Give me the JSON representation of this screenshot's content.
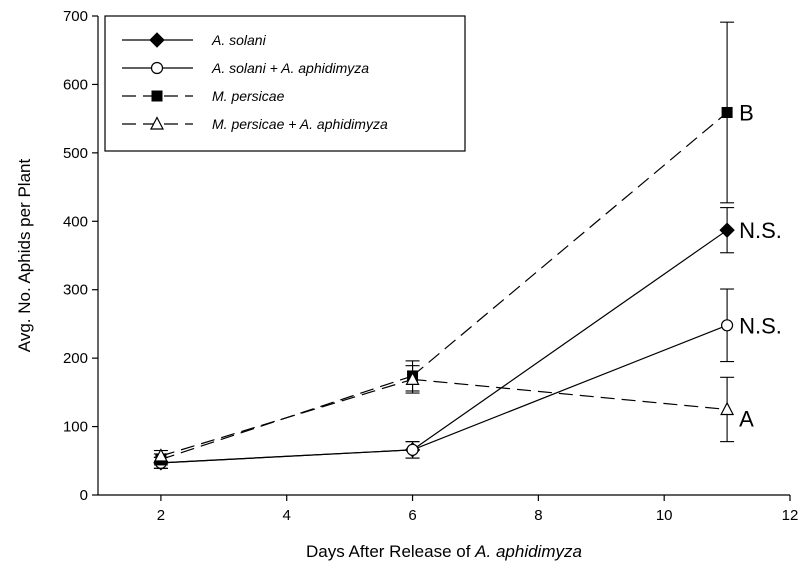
{
  "chart_data": {
    "type": "line",
    "xlabel": "Days After Release of A. aphidimyza",
    "xlabel_parts": [
      "Days After Release of ",
      "A. aphidimyza"
    ],
    "ylabel": "Avg. No. Aphids per Plant",
    "xlim": [
      1,
      12
    ],
    "ylim": [
      0,
      700
    ],
    "xticks": [
      2,
      4,
      6,
      8,
      10,
      12
    ],
    "yticks": [
      0,
      100,
      200,
      300,
      400,
      500,
      600,
      700
    ],
    "grid": false,
    "legend_position": "top-left",
    "series": [
      {
        "name": "A. solani",
        "marker": "filled-diamond",
        "line": "solid",
        "points": [
          {
            "x": 2,
            "y": 47,
            "err": 8
          },
          {
            "x": 6,
            "y": 66,
            "err": 12
          },
          {
            "x": 11,
            "y": 387,
            "err": 33
          }
        ]
      },
      {
        "name": "A. solani + A. aphidimyza",
        "marker": "open-circle",
        "line": "solid",
        "points": [
          {
            "x": 2,
            "y": 47,
            "err": 8
          },
          {
            "x": 6,
            "y": 66,
            "err": 12
          },
          {
            "x": 11,
            "y": 248,
            "err": 53
          }
        ]
      },
      {
        "name": "M. persicae",
        "marker": "filled-square",
        "line": "dashed",
        "points": [
          {
            "x": 2,
            "y": 52,
            "err": 8
          },
          {
            "x": 6,
            "y": 174,
            "err": 22
          },
          {
            "x": 11,
            "y": 559,
            "err": 132
          }
        ]
      },
      {
        "name": "M. persicae + A. aphidimyza",
        "marker": "open-triangle",
        "line": "dashed",
        "points": [
          {
            "x": 2,
            "y": 57,
            "err": 8
          },
          {
            "x": 6,
            "y": 169,
            "err": 20
          },
          {
            "x": 11,
            "y": 125,
            "err": 47
          }
        ]
      }
    ],
    "annotations": [
      {
        "text": "B",
        "x": 11,
        "y": 559
      },
      {
        "text": "N.S.",
        "x": 11,
        "y": 387
      },
      {
        "text": "N.S.",
        "x": 11,
        "y": 248
      },
      {
        "text": "A",
        "x": 11,
        "y": 112
      }
    ]
  }
}
